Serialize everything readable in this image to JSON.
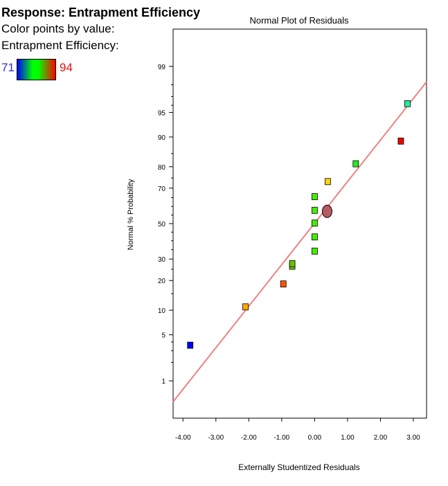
{
  "legend": {
    "title": "Response: Entrapment Efficiency",
    "color_by": "Color points by value:",
    "variable": "Entrapment Efficiency:",
    "min_label": "71",
    "max_label": "94",
    "min_color": "#2b2bd6",
    "max_color": "#e01010"
  },
  "chart_data": {
    "type": "scatter",
    "title": "Normal Plot of Residuals",
    "xlabel": "Externally Studentized Residuals",
    "ylabel": "Normal % Probability",
    "xlim": [
      -4.3,
      3.4
    ],
    "ylim": [
      0.2,
      99.8
    ],
    "y_scale": "normal-probability",
    "grid": false,
    "x_ticks": [
      -4,
      -3,
      -2,
      -1,
      0,
      1,
      2,
      3
    ],
    "x_tick_labels": [
      "-4.00",
      "-3.00",
      "-2.00",
      "-1.00",
      "0.00",
      "1.00",
      "2.00",
      "3.00"
    ],
    "y_ticks": [
      1,
      5,
      10,
      20,
      30,
      50,
      70,
      80,
      90,
      95,
      99
    ],
    "y_tick_labels": [
      "1",
      "5",
      "10",
      "20",
      "30",
      "50",
      "70",
      "80",
      "90",
      "95",
      "99"
    ],
    "fit_line": {
      "color": "#f08080",
      "x_from": -4.3,
      "x_to": 3.4,
      "y_from": 0.42,
      "y_to": 98.2
    },
    "points": [
      {
        "x": -3.78,
        "y": 3.6,
        "color": "#0000ff",
        "marker": "square"
      },
      {
        "x": -2.1,
        "y": 10.9,
        "color": "#ffaa00",
        "marker": "square"
      },
      {
        "x": -0.95,
        "y": 18.6,
        "color": "#ff5500",
        "marker": "square"
      },
      {
        "x": -0.68,
        "y": 26.4,
        "color": "#6bbf00",
        "marker": "square"
      },
      {
        "x": -0.68,
        "y": 27.7,
        "color": "#6bbf00",
        "marker": "square"
      },
      {
        "x": 0.0,
        "y": 34.2,
        "color": "#44ee00",
        "marker": "square"
      },
      {
        "x": 0.0,
        "y": 42.2,
        "color": "#44ee00",
        "marker": "square"
      },
      {
        "x": 0.0,
        "y": 50.3,
        "color": "#44ee00",
        "marker": "square"
      },
      {
        "x": 0.0,
        "y": 57.8,
        "color": "#44ee00",
        "marker": "square"
      },
      {
        "x": 0.0,
        "y": 65.5,
        "color": "#44ee00",
        "marker": "square"
      },
      {
        "x": 0.38,
        "y": 57.2,
        "color": "#b85a63",
        "marker": "circle"
      },
      {
        "x": 0.4,
        "y": 73.3,
        "color": "#ffd400",
        "marker": "square"
      },
      {
        "x": 1.25,
        "y": 81.2,
        "color": "#22ee22",
        "marker": "square"
      },
      {
        "x": 2.62,
        "y": 88.9,
        "color": "#ee0000",
        "marker": "square"
      },
      {
        "x": 2.82,
        "y": 96.2,
        "color": "#22ee99",
        "marker": "square"
      }
    ]
  }
}
